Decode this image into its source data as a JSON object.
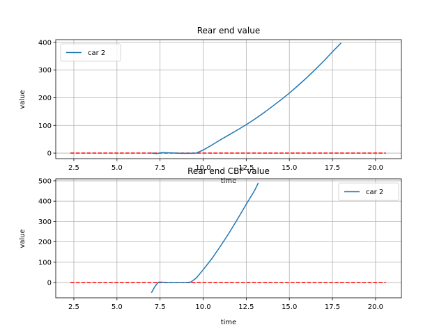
{
  "chart_data": [
    {
      "type": "line",
      "title": "Rear end value",
      "xlabel": "time",
      "ylabel": "value",
      "xlim": [
        1.45,
        21.5
      ],
      "ylim": [
        -20,
        410
      ],
      "xticks": [
        2.5,
        5.0,
        7.5,
        10.0,
        12.5,
        15.0,
        17.5,
        20.0
      ],
      "yticks": [
        0,
        100,
        200,
        300,
        400
      ],
      "grid": true,
      "legend_position": "upper-left",
      "series": [
        {
          "name": "car 2",
          "color": "#1f77b4",
          "style": "solid",
          "x": [
            7.0,
            7.3,
            7.6,
            8.0,
            8.4,
            8.8,
            9.2,
            9.6,
            10.0,
            10.5,
            11.0,
            11.5,
            12.0,
            12.5,
            13.0,
            13.5,
            14.0,
            14.5,
            15.0,
            15.5,
            16.0,
            16.5,
            17.0,
            17.5,
            18.0
          ],
          "y": [
            0,
            -2,
            2,
            1,
            0,
            -1,
            -1,
            0,
            11,
            29,
            48,
            66,
            84,
            103,
            123,
            145,
            168,
            192,
            217,
            244,
            272,
            302,
            333,
            366,
            398
          ]
        },
        {
          "name": "",
          "color": "#ff0000",
          "style": "dashed",
          "x": [
            2.3,
            20.6
          ],
          "y": [
            0,
            0
          ]
        }
      ]
    },
    {
      "type": "line",
      "title": "Rear end CBF value",
      "xlabel": "time",
      "ylabel": "value",
      "xlim": [
        1.45,
        21.5
      ],
      "ylim": [
        -75,
        510
      ],
      "xticks": [
        2.5,
        5.0,
        7.5,
        10.0,
        12.5,
        15.0,
        17.5,
        20.0
      ],
      "yticks": [
        0,
        100,
        200,
        300,
        400,
        500
      ],
      "grid": true,
      "legend_position": "upper-right",
      "series": [
        {
          "name": "car 2",
          "color": "#1f77b4",
          "style": "solid",
          "x": [
            7.0,
            7.2,
            7.4,
            7.6,
            8.0,
            8.5,
            9.0,
            9.3,
            9.6,
            10.0,
            10.5,
            11.0,
            11.5,
            12.0,
            12.5,
            13.0,
            13.2
          ],
          "y": [
            -50,
            -20,
            2,
            2,
            0,
            0,
            0,
            3,
            22,
            63,
            117,
            178,
            243,
            313,
            385,
            455,
            490
          ]
        },
        {
          "name": "",
          "color": "#ff0000",
          "style": "dashed",
          "x": [
            2.3,
            20.6
          ],
          "y": [
            0,
            0
          ]
        }
      ]
    }
  ]
}
